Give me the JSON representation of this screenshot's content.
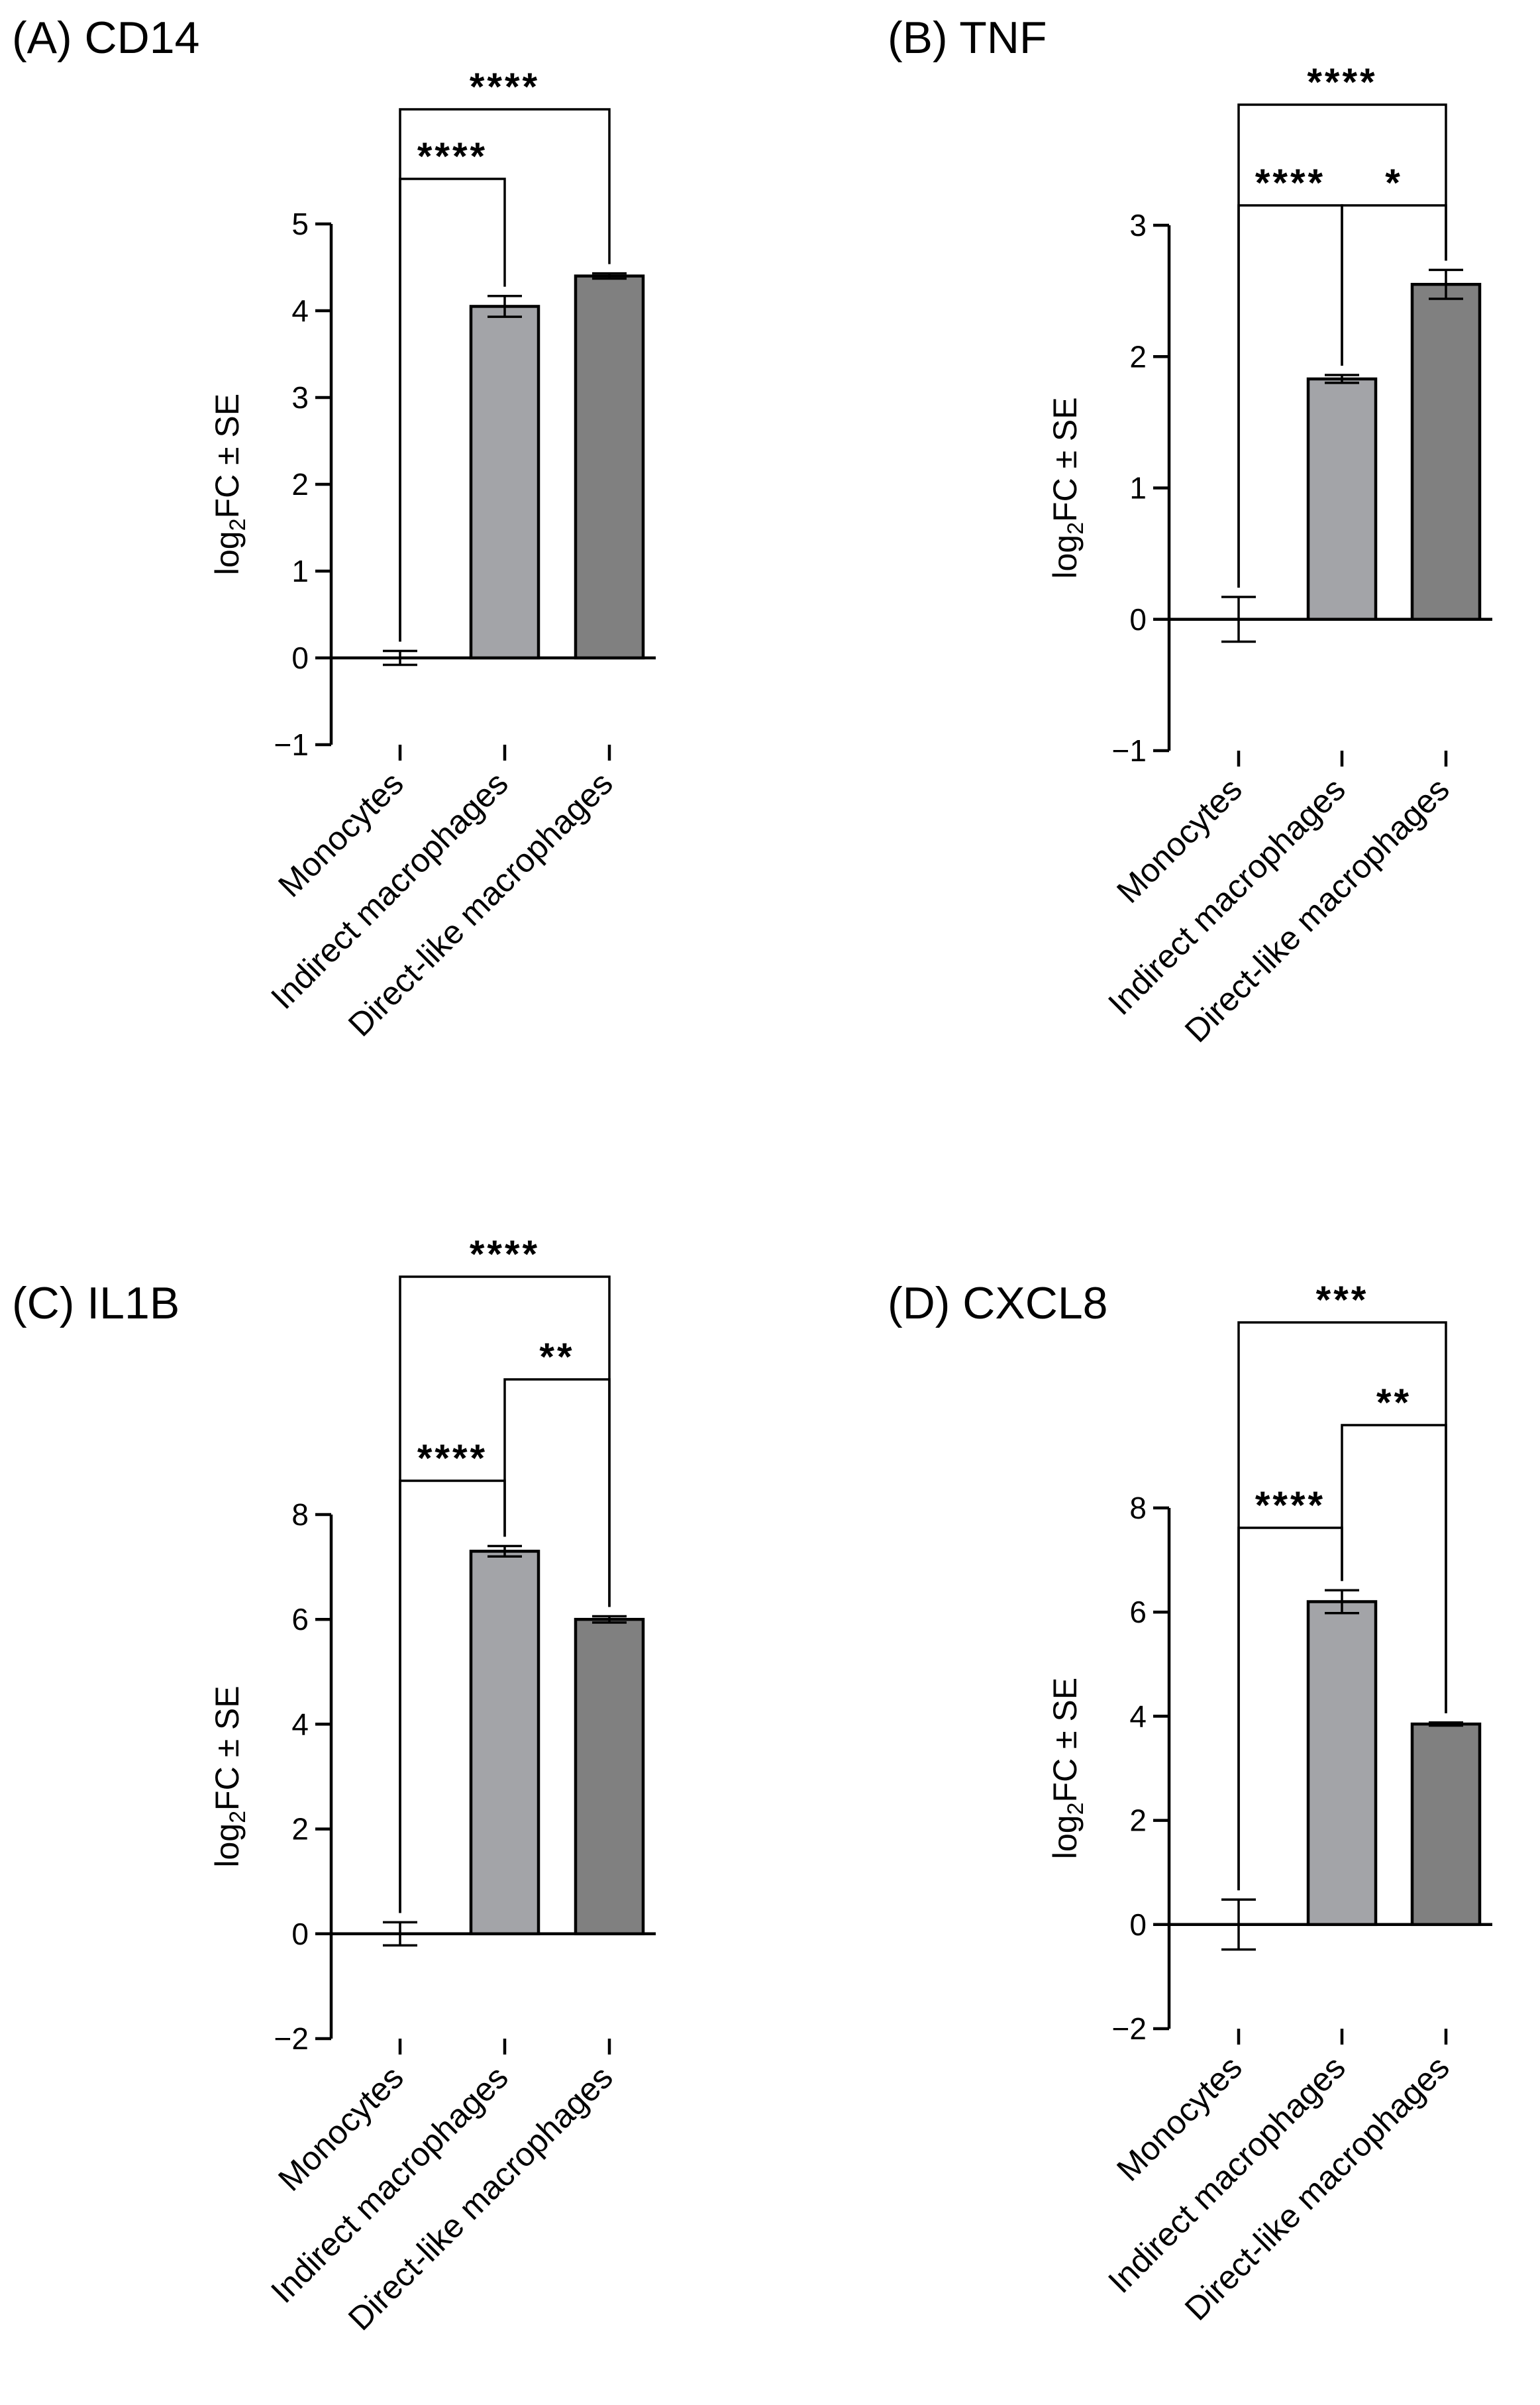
{
  "colors": {
    "bar_indirect": "#a3a4a8",
    "bar_direct": "#808080",
    "axis": "#000000",
    "background": "#ffffff"
  },
  "chart_data": [
    {
      "type": "bar",
      "title": "(A) CD14",
      "ylabel_main": "log",
      "ylabel_sub": "2",
      "ylabel_rest": "FC ± SE",
      "categories": [
        "Monocytes",
        "Indirect macrophages",
        "Direct-like macrophages"
      ],
      "values": [
        0,
        4.05,
        4.4
      ],
      "errors": [
        0.08,
        0.12,
        0.03
      ],
      "ylim": [
        -1,
        5
      ],
      "yticks": [
        -1,
        0,
        1,
        2,
        3,
        4,
        5
      ],
      "ytick_labels": [
        "−1",
        "0",
        "1",
        "2",
        "3",
        "4",
        "5"
      ],
      "comparisons": [
        {
          "from": 0,
          "to": 1,
          "label": "****"
        },
        {
          "from": 0,
          "to": 2,
          "label": "****"
        }
      ]
    },
    {
      "type": "bar",
      "title": "(B) TNF",
      "ylabel_main": "log",
      "ylabel_sub": "2",
      "ylabel_rest": "FC ± SE",
      "categories": [
        "Monocytes",
        "Indirect macrophages",
        "Direct-like macrophages"
      ],
      "values": [
        0,
        1.83,
        2.55
      ],
      "errors": [
        0.17,
        0.03,
        0.11
      ],
      "ylim": [
        -1,
        3
      ],
      "yticks": [
        -1,
        0,
        1,
        2,
        3
      ],
      "ytick_labels": [
        "−1",
        "0",
        "1",
        "2",
        "3"
      ],
      "comparisons": [
        {
          "from": 0,
          "to": 1,
          "label": "****"
        },
        {
          "from": 1,
          "to": 2,
          "label": "*"
        },
        {
          "from": 0,
          "to": 2,
          "label": "****"
        }
      ]
    },
    {
      "type": "bar",
      "title": "(C) IL1B",
      "ylabel_main": "log",
      "ylabel_sub": "2",
      "ylabel_rest": "FC ± SE",
      "categories": [
        "Monocytes",
        "Indirect macrophages",
        "Direct-like macrophages"
      ],
      "values": [
        0,
        7.3,
        6.0
      ],
      "errors": [
        0.22,
        0.1,
        0.06
      ],
      "ylim": [
        -2,
        8
      ],
      "yticks": [
        -2,
        0,
        2,
        4,
        6,
        8
      ],
      "ytick_labels": [
        "−2",
        "0",
        "2",
        "4",
        "6",
        "8"
      ],
      "comparisons": [
        {
          "from": 0,
          "to": 1,
          "label": "****"
        },
        {
          "from": 1,
          "to": 2,
          "label": "**"
        },
        {
          "from": 0,
          "to": 2,
          "label": "****"
        }
      ]
    },
    {
      "type": "bar",
      "title": "(D) CXCL8",
      "ylabel_main": "log",
      "ylabel_sub": "2",
      "ylabel_rest": "FC ± SE",
      "categories": [
        "Monocytes",
        "Indirect macrophages",
        "Direct-like macrophages"
      ],
      "values": [
        0,
        6.2,
        3.85
      ],
      "errors": [
        0.48,
        0.22,
        0.03
      ],
      "ylim": [
        -2,
        8
      ],
      "yticks": [
        -2,
        0,
        2,
        4,
        6,
        8
      ],
      "ytick_labels": [
        "−2",
        "0",
        "2",
        "4",
        "6",
        "8"
      ],
      "comparisons": [
        {
          "from": 0,
          "to": 1,
          "label": "****"
        },
        {
          "from": 1,
          "to": 2,
          "label": "**"
        },
        {
          "from": 0,
          "to": 2,
          "label": "***"
        }
      ]
    }
  ]
}
